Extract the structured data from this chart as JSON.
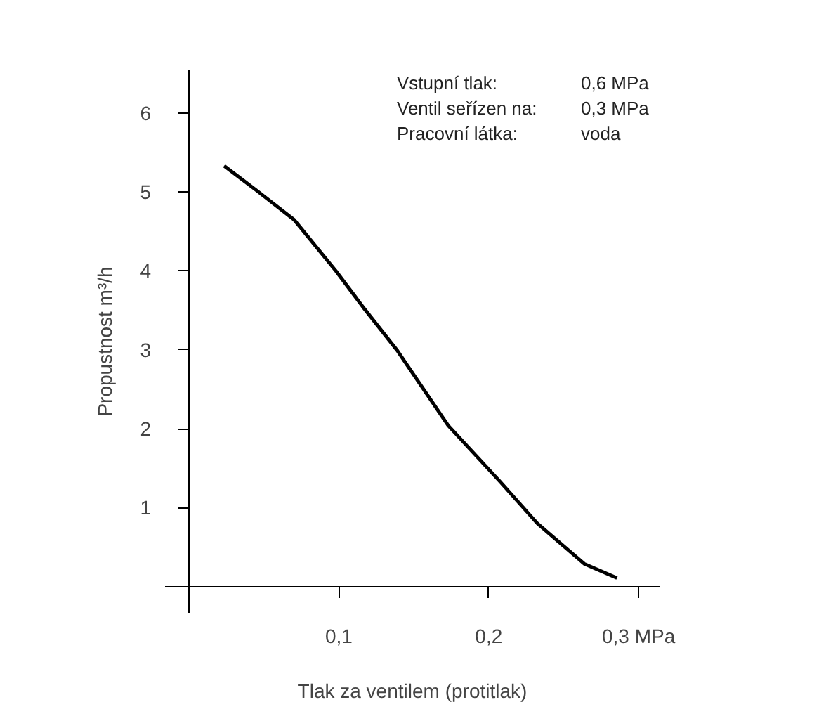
{
  "chart_data": {
    "type": "line",
    "xlabel": "Tlak za ventilem (protitlak)",
    "ylabel": "Propustnost m³/h",
    "x": [
      0.0234,
      0.045,
      0.07,
      0.098,
      0.117,
      0.139,
      0.173,
      0.2076,
      0.2325,
      0.2637,
      0.2856
    ],
    "series": [
      {
        "color": "#000000",
        "values": [
          5.33,
          5.02,
          4.65,
          4.0,
          3.52,
          2.99,
          2.04,
          1.33,
          0.8,
          0.29,
          0.11
        ]
      }
    ],
    "xlim": [
      -0.016,
      0.314
    ],
    "ylim": [
      -0.34,
      6.55
    ],
    "xticks": [
      {
        "value": 0.1,
        "label": "0,1"
      },
      {
        "value": 0.2,
        "label": "0,2"
      },
      {
        "value": 0.3,
        "label": "0,3 MPa"
      }
    ],
    "yticks": [
      1,
      2,
      3,
      4,
      5,
      6
    ],
    "grid": false,
    "marker": "none",
    "line_style": "solid",
    "annotations": [
      "Vstupní tlak:",
      "0,6 MPa",
      "Ventil seřízen na:",
      "0,3 MPa",
      "Pracovní látka:",
      "voda"
    ]
  }
}
